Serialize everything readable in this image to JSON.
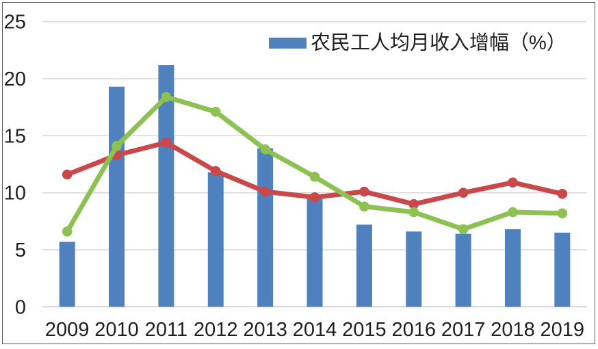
{
  "chart": {
    "legend": {
      "bar_label": "农民工人均月收入增幅（%）"
    },
    "colors": {
      "bar": "#4E81BD",
      "red_line": "#C9494B",
      "green_line": "#8DC152",
      "gridline": "#D9D9D9",
      "axis_line": "#C9C9C9",
      "border": "#595959",
      "text": "#1f1f1f"
    }
  },
  "chart_data": {
    "type": "bar",
    "subtype": "combo-bar-line",
    "title": "",
    "xlabel": "",
    "ylabel": "",
    "categories": [
      "2009",
      "2010",
      "2011",
      "2012",
      "2013",
      "2014",
      "2015",
      "2016",
      "2017",
      "2018",
      "2019"
    ],
    "series": [
      {
        "id": "bar-series",
        "name": "农民工人均月收入增幅（%）",
        "type": "bar",
        "color": "#4E81BD",
        "values": [
          5.7,
          19.3,
          21.2,
          11.8,
          13.9,
          9.5,
          7.2,
          6.6,
          6.4,
          6.8,
          6.5
        ]
      },
      {
        "id": "red-line-series",
        "name": "",
        "type": "line",
        "color": "#C9494B",
        "values": [
          11.6,
          13.3,
          14.4,
          11.9,
          10.1,
          9.6,
          10.1,
          9.0,
          10.0,
          10.9,
          9.9
        ]
      },
      {
        "id": "green-line-series",
        "name": "",
        "type": "line",
        "color": "#8DC152",
        "values": [
          6.6,
          14.1,
          18.4,
          17.1,
          13.8,
          11.4,
          8.8,
          8.3,
          6.8,
          8.3,
          8.2
        ]
      }
    ],
    "yticks": [
      0,
      5,
      10,
      15,
      20,
      25
    ],
    "ylim": [
      0,
      25
    ],
    "grid": true,
    "legend_position": "top-center",
    "legend_visible_series": [
      "bar-series"
    ]
  }
}
